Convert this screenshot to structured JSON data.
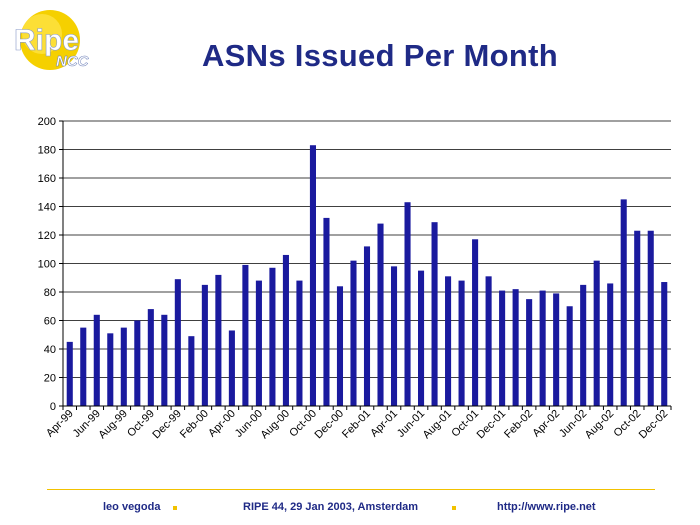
{
  "logo": {
    "word": "Ripe",
    "sub": "NCC"
  },
  "title": "ASNs Issued Per Month",
  "footer": {
    "author": "leo vegoda",
    "event": "RIPE 44, 29 Jan 2003, Amsterdam",
    "url": "http://www.ripe.net"
  },
  "colors": {
    "bar": "#1a1a9e",
    "title": "#1f2a86",
    "accent": "#f2c200"
  },
  "chart_data": {
    "type": "bar",
    "title": "ASNs Issued Per Month",
    "xlabel": "",
    "ylabel": "",
    "ylim": [
      0,
      200
    ],
    "yticks": [
      0,
      20,
      40,
      60,
      80,
      100,
      120,
      140,
      160,
      180,
      200
    ],
    "grid": true,
    "categories": [
      "Apr-99",
      "May-99",
      "Jun-99",
      "Jul-99",
      "Aug-99",
      "Sep-99",
      "Oct-99",
      "Nov-99",
      "Dec-99",
      "Jan-00",
      "Feb-00",
      "Mar-00",
      "Apr-00",
      "May-00",
      "Jun-00",
      "Jul-00",
      "Aug-00",
      "Sep-00",
      "Oct-00",
      "Nov-00",
      "Dec-00",
      "Jan-01",
      "Feb-01",
      "Mar-01",
      "Apr-01",
      "May-01",
      "Jun-01",
      "Jul-01",
      "Aug-01",
      "Sep-01",
      "Oct-01",
      "Nov-01",
      "Dec-01",
      "Jan-02",
      "Feb-02",
      "Mar-02",
      "Apr-02",
      "May-02",
      "Jun-02",
      "Jul-02",
      "Aug-02",
      "Sep-02",
      "Oct-02",
      "Nov-02",
      "Dec-02"
    ],
    "xtick_labels": [
      "Apr-99",
      "Jun-99",
      "Aug-99",
      "Oct-99",
      "Dec-99",
      "Feb-00",
      "Apr-00",
      "Jun-00",
      "Aug-00",
      "Oct-00",
      "Dec-00",
      "Feb-01",
      "Apr-01",
      "Jun-01",
      "Aug-01",
      "Oct-01",
      "Dec-01",
      "Feb-02",
      "Apr-02",
      "Jun-02",
      "Aug-02",
      "Oct-02",
      "Dec-02"
    ],
    "values": [
      45,
      55,
      64,
      51,
      55,
      60,
      68,
      64,
      89,
      49,
      85,
      92,
      53,
      99,
      88,
      97,
      106,
      88,
      183,
      132,
      84,
      102,
      112,
      128,
      98,
      143,
      95,
      129,
      91,
      88,
      117,
      91,
      81,
      82,
      75,
      81,
      79,
      70,
      85,
      102,
      86,
      145,
      123,
      123,
      87
    ]
  }
}
